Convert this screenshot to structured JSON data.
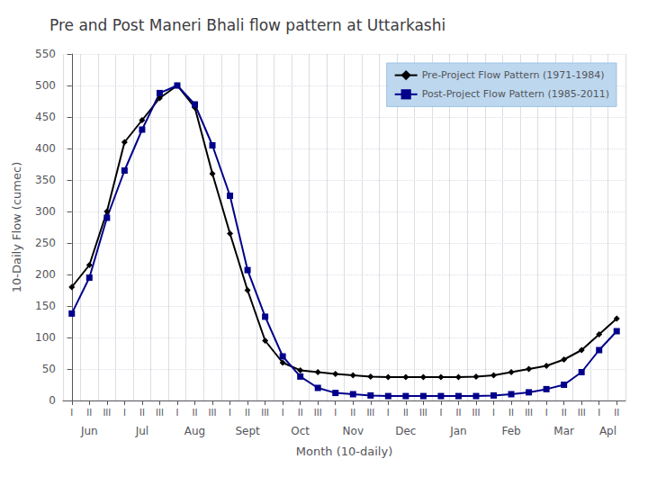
{
  "chart_data": {
    "type": "line",
    "title": "Pre and Post Maneri Bhali flow pattern at Uttarkashi",
    "xlabel": "Month (10-daily)",
    "ylabel": "10-Daily Flow (cumec)",
    "categories": [
      "I",
      "II",
      "III",
      "I",
      "II",
      "III",
      "I",
      "II",
      "III",
      "I",
      "II",
      "III",
      "I",
      "II",
      "III",
      "I",
      "II",
      "III",
      "I",
      "II",
      "III",
      "I",
      "II",
      "III",
      "I",
      "II",
      "III",
      "I",
      "II",
      "III",
      "I",
      "II"
    ],
    "category_groups": [
      {
        "label": "Jun",
        "span": 3
      },
      {
        "label": "Jul",
        "span": 3
      },
      {
        "label": "Aug",
        "span": 3
      },
      {
        "label": "Sept",
        "span": 3
      },
      {
        "label": "Oct",
        "span": 3
      },
      {
        "label": "Nov",
        "span": 3
      },
      {
        "label": "Dec",
        "span": 3
      },
      {
        "label": "Jan",
        "span": 3
      },
      {
        "label": "Feb",
        "span": 3
      },
      {
        "label": "Mar",
        "span": 3
      },
      {
        "label": "Apl",
        "span": 2
      }
    ],
    "series": [
      {
        "name": "Pre-Project Flow Pattern (1971-1984)",
        "color": "#000000",
        "marker": "diamond",
        "values": [
          180,
          215,
          300,
          410,
          445,
          480,
          500,
          465,
          360,
          265,
          175,
          95,
          60,
          48,
          45,
          42,
          40,
          38,
          37,
          37,
          37,
          37,
          37,
          38,
          40,
          45,
          50,
          55,
          65,
          80,
          105,
          130
        ]
      },
      {
        "name": "Post-Project Flow Pattern (1985-2011)",
        "color": "#00008B",
        "marker": "square",
        "values": [
          138,
          195,
          290,
          365,
          430,
          488,
          500,
          470,
          405,
          325,
          207,
          133,
          70,
          38,
          20,
          12,
          10,
          8,
          7,
          7,
          7,
          7,
          7,
          7,
          8,
          10,
          13,
          18,
          25,
          45,
          80,
          110
        ]
      }
    ],
    "ylim": [
      0,
      550
    ],
    "yticks": [
      0,
      50,
      100,
      150,
      200,
      250,
      300,
      350,
      400,
      450,
      500,
      550
    ],
    "grid": true,
    "legend": "upper right"
  }
}
